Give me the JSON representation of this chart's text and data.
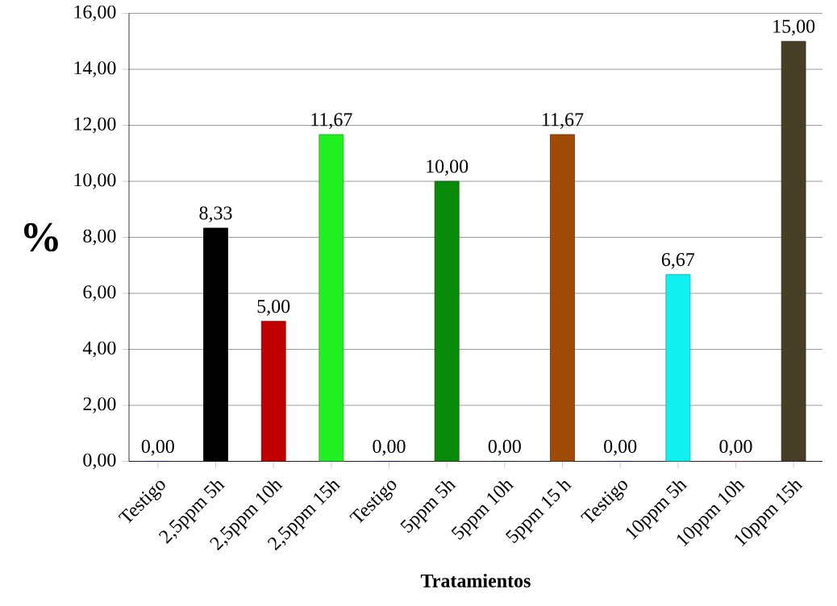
{
  "chart_data": {
    "type": "bar",
    "xlabel": "Tratamientos",
    "ylabel": "%",
    "categories": [
      "Testigo",
      "2,5ppm 5h",
      "2,5ppm 10h",
      "2,5ppm 15h",
      "Testigo",
      "5ppm 5h",
      "5ppm 10h",
      "5ppm 15 h",
      "Testigo",
      "10ppm 5h",
      "10ppm 10h",
      "10ppm 15h"
    ],
    "values": [
      0,
      8.33,
      5,
      11.67,
      0,
      10,
      0,
      11.67,
      0,
      6.67,
      0,
      15
    ],
    "value_labels": [
      "0,00",
      "8,33",
      "5,00",
      "11,67",
      "0,00",
      "10,00",
      "0,00",
      "11,67",
      "0,00",
      "6,67",
      "0,00",
      "15,00"
    ],
    "colors": [
      "#0a14c8",
      "#000000",
      "#c00000",
      "#22f022",
      "#0a14c8",
      "#0a8a0a",
      "#0a2a50",
      "#a04a08",
      "#0a14c8",
      "#10f0f0",
      "#d0104a",
      "#463e26"
    ],
    "ylim": [
      0,
      16
    ],
    "yticks": [
      {
        "value": 0,
        "label": "0,00"
      },
      {
        "value": 2,
        "label": "2,00"
      },
      {
        "value": 4,
        "label": "4,00"
      },
      {
        "value": 6,
        "label": "6,00"
      },
      {
        "value": 8,
        "label": "8,00"
      },
      {
        "value": 10,
        "label": "10,00"
      },
      {
        "value": 12,
        "label": "12,00"
      },
      {
        "value": 14,
        "label": "14,00"
      },
      {
        "value": 16,
        "label": "16,00"
      }
    ],
    "grid": "y"
  }
}
